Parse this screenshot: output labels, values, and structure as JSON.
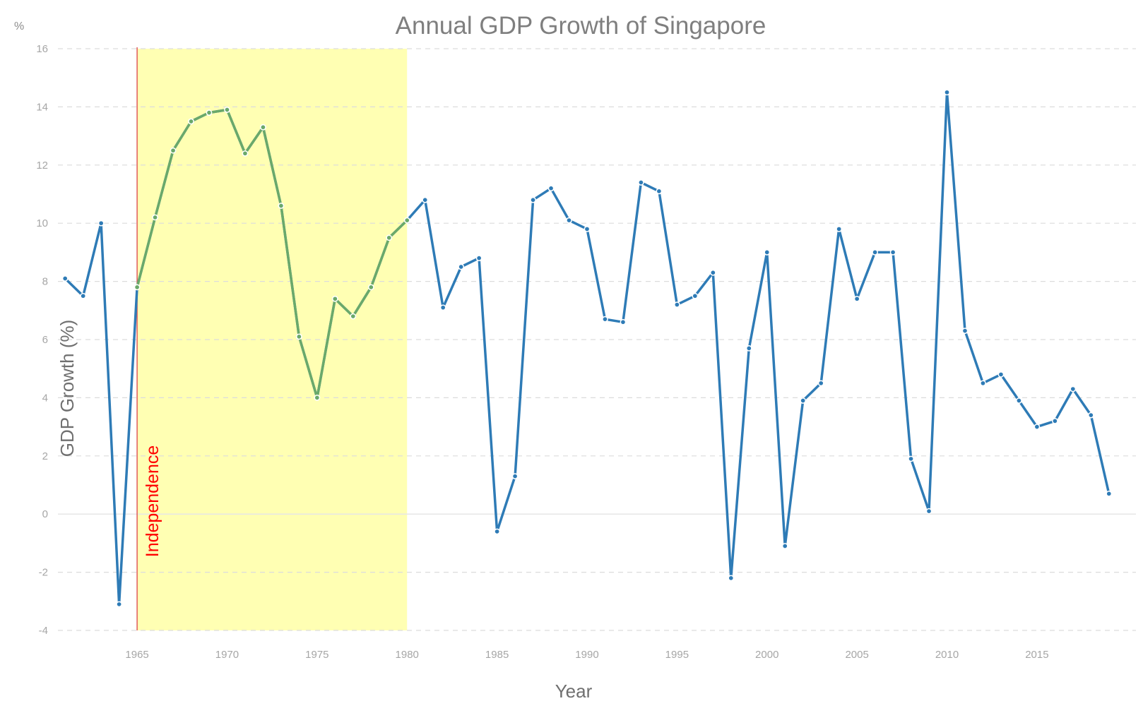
{
  "chart_data": {
    "type": "line",
    "title": "Annual GDP Growth of Singapore",
    "xlabel": "Year",
    "ylabel": "GDP Growth (%)",
    "y_unit": "%",
    "xlim": [
      1960.6,
      2020.5
    ],
    "ylim": [
      -4,
      16
    ],
    "y_ticks": [
      -4,
      -2,
      0,
      2,
      4,
      6,
      8,
      10,
      12,
      14,
      16
    ],
    "x_ticks": [
      1965,
      1970,
      1975,
      1980,
      1985,
      1990,
      1995,
      2000,
      2005,
      2010,
      2015
    ],
    "grid": true,
    "annotation": {
      "x": 1965,
      "label": "Independence",
      "color": "#ff0000"
    },
    "highlight": {
      "x_from": 1965,
      "x_to": 1980,
      "color": "#ffffb3"
    },
    "series": [
      {
        "color": "#2e7bb6",
        "x": [
          1961,
          1962,
          1963,
          1964,
          1965,
          1966,
          1967,
          1968,
          1969,
          1970,
          1971,
          1972,
          1973,
          1974,
          1975,
          1976,
          1977,
          1978,
          1979,
          1980,
          1981,
          1982,
          1983,
          1984,
          1985,
          1986,
          1987,
          1988,
          1989,
          1990,
          1991,
          1992,
          1993,
          1994,
          1995,
          1996,
          1997,
          1998,
          1999,
          2000,
          2001,
          2002,
          2003,
          2004,
          2005,
          2006,
          2007,
          2008,
          2009,
          2010,
          2011,
          2012,
          2013,
          2014,
          2015,
          2016,
          2017,
          2018,
          2019
        ],
        "values": [
          8.1,
          7.5,
          10.0,
          -3.1,
          7.8,
          10.2,
          12.5,
          13.5,
          13.8,
          13.9,
          12.4,
          13.3,
          10.6,
          6.1,
          4.0,
          7.4,
          6.8,
          7.8,
          9.5,
          10.1,
          10.8,
          7.1,
          8.5,
          8.8,
          -0.6,
          1.3,
          10.8,
          11.2,
          10.1,
          9.8,
          6.7,
          6.6,
          11.4,
          11.1,
          7.2,
          7.5,
          8.3,
          -2.2,
          5.7,
          9.0,
          -1.1,
          3.9,
          4.5,
          9.8,
          7.4,
          9.0,
          9.0,
          1.9,
          0.1,
          14.5,
          6.3,
          4.5,
          4.8,
          3.9,
          3.0,
          3.2,
          4.3,
          3.4,
          0.7
        ]
      },
      {
        "color": "#6aa96a",
        "x": [
          1965,
          1966,
          1967,
          1968,
          1969,
          1970,
          1971,
          1972,
          1973,
          1974,
          1975,
          1976,
          1977,
          1978,
          1979,
          1980
        ],
        "values": [
          7.8,
          10.2,
          12.5,
          13.5,
          13.8,
          13.9,
          12.4,
          13.3,
          10.6,
          6.1,
          4.0,
          7.4,
          6.8,
          7.8,
          9.5,
          10.1
        ]
      }
    ]
  }
}
